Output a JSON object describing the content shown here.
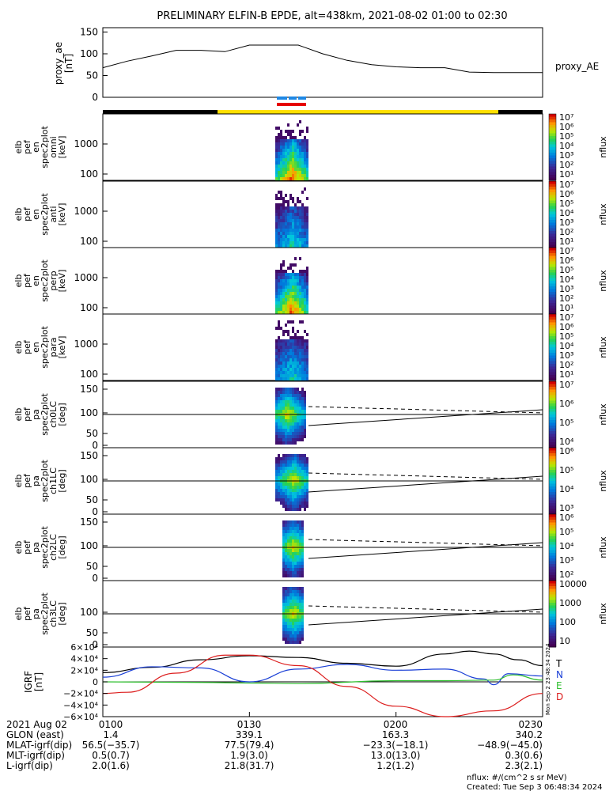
{
  "title": "PRELIMINARY ELFIN-B EPDE, alt=438km, 2021-08-02 01:00 to 02:30",
  "chart_data": [
    {
      "type": "line",
      "id": "proxy_ae",
      "ylabel": [
        "proxy_ae",
        "[nT]"
      ],
      "yticks": [
        "150",
        "100",
        "50",
        "0"
      ],
      "legend": "proxy_AE",
      "ylim": [
        0,
        160
      ],
      "x_minutes": [
        0,
        5,
        10,
        15,
        20,
        25,
        30,
        35,
        40,
        45,
        50,
        55,
        60,
        65,
        70,
        75,
        80,
        85,
        90
      ],
      "values": [
        68,
        83,
        95,
        108,
        108,
        105,
        120,
        120,
        120,
        100,
        85,
        75,
        70,
        68,
        68,
        58,
        57,
        57,
        57
      ]
    },
    {
      "type": "heatmap",
      "id": "en-omni",
      "ylabel": [
        "elb",
        "pef",
        "en",
        "spec2plot",
        "omni",
        "[keV]"
      ],
      "yticks": [
        "1000",
        "100"
      ],
      "cbar_ticks": [
        "10⁷",
        "10⁶",
        "10⁵",
        "10⁴",
        "10³",
        "10²",
        "10¹"
      ],
      "cbar_label": "nflux"
    },
    {
      "type": "heatmap",
      "id": "en-anti",
      "ylabel": [
        "elb",
        "pef",
        "en",
        "spec2plot",
        "anti",
        "[keV]"
      ],
      "yticks": [
        "1000",
        "100"
      ],
      "cbar_ticks": [
        "10⁷",
        "10⁶",
        "10⁵",
        "10⁴",
        "10³",
        "10²",
        "10¹"
      ],
      "cbar_label": "nflux"
    },
    {
      "type": "heatmap",
      "id": "en-perp",
      "ylabel": [
        "elb",
        "pef",
        "en",
        "spec2plot",
        "perp",
        "[keV]"
      ],
      "yticks": [
        "1000",
        "100"
      ],
      "cbar_ticks": [
        "10⁷",
        "10⁶",
        "10⁵",
        "10⁴",
        "10³",
        "10²",
        "10¹"
      ],
      "cbar_label": "nflux"
    },
    {
      "type": "heatmap",
      "id": "en-para",
      "ylabel": [
        "elb",
        "pef",
        "en",
        "spec2plot",
        "para",
        "[keV]"
      ],
      "yticks": [
        "1000",
        "100"
      ],
      "cbar_ticks": [
        "10⁷",
        "10⁶",
        "10⁵",
        "10⁴",
        "10³",
        "10²",
        "10¹"
      ],
      "cbar_label": "nflux"
    },
    {
      "type": "heatmap",
      "id": "pa-ch0",
      "ylabel": [
        "elb",
        "pef",
        "pa",
        "spec2plot",
        "ch0LC",
        "[deg]"
      ],
      "yticks": [
        "150",
        "100",
        "50",
        "0"
      ],
      "cbar_ticks": [
        "10⁷",
        "10⁶",
        "10⁵",
        "10⁴"
      ],
      "cbar_label": "nflux"
    },
    {
      "type": "heatmap",
      "id": "pa-ch1",
      "ylabel": [
        "elb",
        "pef",
        "pa",
        "spec2plot",
        "ch1LC",
        "[deg]"
      ],
      "yticks": [
        "150",
        "100",
        "50",
        "0"
      ],
      "cbar_ticks": [
        "10⁶",
        "10⁵",
        "10⁴",
        "10³"
      ],
      "cbar_label": "nflux"
    },
    {
      "type": "heatmap",
      "id": "pa-ch2",
      "ylabel": [
        "elb",
        "pef",
        "pa",
        "spec2plot",
        "ch2LC",
        "[deg]"
      ],
      "yticks": [
        "150",
        "100",
        "50",
        "0"
      ],
      "cbar_ticks": [
        "10⁶",
        "10⁵",
        "10⁴",
        "10³",
        "10²"
      ],
      "cbar_label": "nflux"
    },
    {
      "type": "heatmap",
      "id": "pa-ch3",
      "ylabel": [
        "elb",
        "pef",
        "pa",
        "spec2plot",
        "ch3LC",
        "[deg]"
      ],
      "yticks": [
        "100",
        "50",
        "0"
      ],
      "cbar_ticks": [
        "10000",
        "1000",
        "100",
        "10"
      ],
      "cbar_label": "nflux"
    },
    {
      "type": "line",
      "id": "igrf",
      "ylabel": [
        "IGRF",
        "[nT]"
      ],
      "yticks": [
        "6×10⁴",
        "4×10⁴",
        "2×10⁴",
        "0",
        "−2×10⁴",
        "−4×10⁴",
        "−6×10⁴"
      ],
      "ylim": [
        -60000,
        60000
      ],
      "series": [
        {
          "name": "T",
          "color": "#000000",
          "x_minutes": [
            0,
            10,
            20,
            30,
            40,
            50,
            60,
            70,
            75,
            80,
            85,
            90
          ],
          "values": [
            16000,
            25000,
            38000,
            45000,
            42000,
            32000,
            27000,
            48000,
            53000,
            48000,
            38000,
            28000
          ]
        },
        {
          "name": "N",
          "color": "#1a3fd6",
          "x_minutes": [
            0,
            10,
            20,
            30,
            40,
            50,
            60,
            70,
            78,
            80,
            83,
            90
          ],
          "values": [
            8000,
            26000,
            24000,
            0,
            22000,
            30000,
            20000,
            22000,
            5000,
            -5000,
            14000,
            10000
          ]
        },
        {
          "name": "E",
          "color": "#2fbf2f",
          "x_minutes": [
            0,
            20,
            30,
            40,
            60,
            70,
            80,
            84,
            90
          ],
          "values": [
            0,
            -1000,
            -2000,
            -3000,
            2000,
            2000,
            3000,
            12000,
            3000
          ]
        },
        {
          "name": "D",
          "color": "#dc1d1d",
          "x_minutes": [
            0,
            5,
            15,
            25,
            30,
            40,
            50,
            60,
            70,
            80,
            90
          ],
          "values": [
            -20000,
            -18000,
            15000,
            46000,
            46000,
            28000,
            -8000,
            -42000,
            -60000,
            -50000,
            -20000
          ]
        }
      ],
      "level_lines": [
        0
      ]
    }
  ],
  "footer": {
    "rows": [
      [
        "2021 Aug 02",
        "0100",
        "0130",
        "0200",
        "0230"
      ],
      [
        "GLON (east)",
        "1.4",
        "339.1",
        "163.3",
        "340.2"
      ],
      [
        "MLAT-igrf(dip)",
        "56.5(−35.7)",
        "77.5(79.4)",
        "−23.3(−18.1)",
        "−48.9(−45.0)"
      ],
      [
        "MLT-igrf(dip)",
        "0.5(0.7)",
        "1.9(3.0)",
        "13.0(13.0)",
        "0.3(0.6)"
      ],
      [
        "L-igrf(dip)",
        "2.0(1.6)",
        "21.8(31.7)",
        "1.2(1.2)",
        "2.3(2.1)"
      ]
    ],
    "units_note": "nflux: #/(cm^2 s sr MeV)",
    "created": "Created: Tue Sep  3 06:48:34 2024"
  },
  "side_stamp": "Mon Sep  2 23:48:34 2024",
  "colors": {
    "bar_black": "#000000",
    "bar_yellow": "#ffe000",
    "seg_blue": "#1e88e5",
    "seg_red": "#e60000"
  }
}
